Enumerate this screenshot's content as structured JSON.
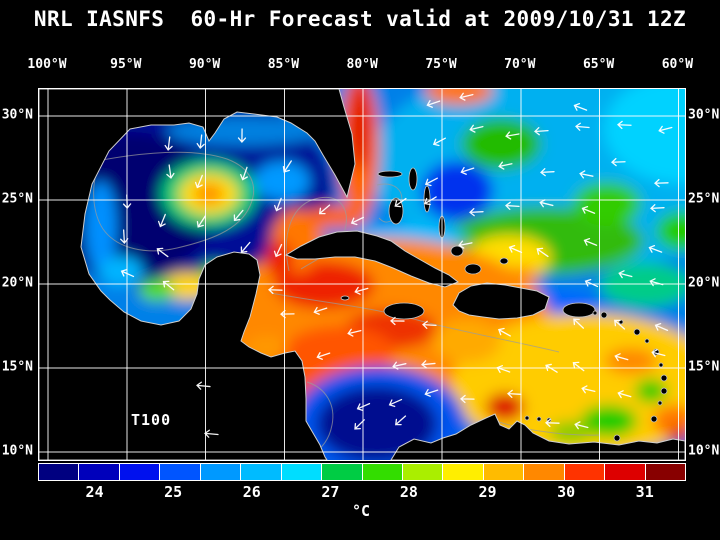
{
  "title": "NRL IASNFS  60-Hr Forecast valid at 2009/10/31 12Z",
  "map": {
    "lon_labels": [
      "100°W",
      "95°W",
      "90°W",
      "85°W",
      "80°W",
      "75°W",
      "70°W",
      "65°W",
      "60°W"
    ],
    "lat_labels": [
      "30°N",
      "25°N",
      "20°N",
      "15°N",
      "10°N"
    ],
    "annotation": "T100"
  },
  "colorbar": {
    "unit": "°C",
    "ticks": [
      24,
      25,
      26,
      27,
      28,
      29,
      30,
      31
    ],
    "colors": [
      "#000080",
      "#0000bb",
      "#0011ee",
      "#0055ff",
      "#0099ff",
      "#00bbff",
      "#00ddff",
      "#00cc44",
      "#33dd00",
      "#aaee00",
      "#ffee00",
      "#ffbb00",
      "#ff8800",
      "#ff3300",
      "#dd0000",
      "#880000"
    ]
  }
}
